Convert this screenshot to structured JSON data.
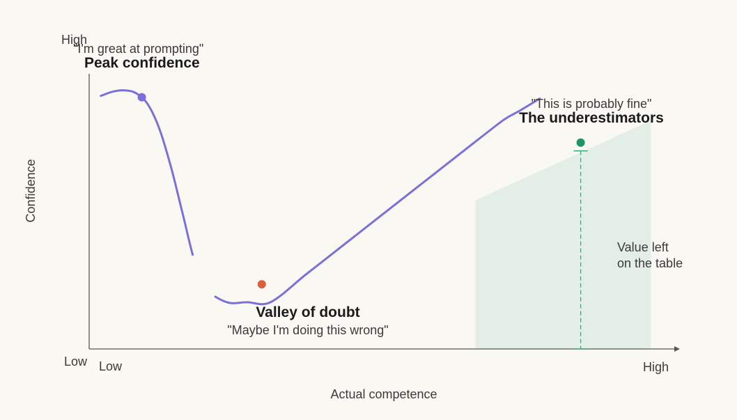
{
  "chart_data": {
    "type": "line",
    "xlabel": "Actual competence",
    "ylabel": "Confidence",
    "x_ticks": {
      "low": "Low",
      "high": "High"
    },
    "y_ticks": {
      "low": "Low",
      "high": "High"
    },
    "xlim": [
      0,
      100
    ],
    "ylim": [
      0,
      100
    ],
    "grid": false,
    "colors": {
      "curve": "#7b6fd8",
      "peak_point": "#7b6fd8",
      "valley_point": "#d9603b",
      "under_point": "#1e9468",
      "shade": "#e3efe6",
      "gap_line": "#3aa57c",
      "axis": "#555555"
    },
    "series": [
      {
        "values_xy": [
          [
            2,
            92
          ],
          [
            4,
            93.5
          ],
          [
            6,
            94
          ],
          [
            8,
            93
          ],
          [
            10,
            89
          ],
          [
            12,
            80
          ],
          [
            14,
            66
          ],
          [
            16,
            49
          ],
          [
            18,
            32
          ],
          [
            20,
            22
          ],
          [
            23.5,
            17
          ],
          [
            27,
            17
          ],
          [
            31,
            17
          ],
          [
            37,
            27
          ],
          [
            43,
            37
          ],
          [
            49,
            47
          ],
          [
            55,
            57
          ],
          [
            61,
            67
          ],
          [
            67,
            77
          ],
          [
            71,
            83.5
          ],
          [
            73.5,
            86.5
          ],
          [
            77,
            91
          ]
        ]
      }
    ],
    "shaded_region": {
      "x": [
        66,
        96
      ],
      "y_start": [
        54,
        83
      ]
    },
    "gap_marker": {
      "x": 84,
      "y_low": 0,
      "y_high": 72
    },
    "annotations": [
      {
        "id": "peak",
        "point": [
          9,
          91.5
        ],
        "title": "Peak confidence",
        "quote": "\"I'm great at prompting\""
      },
      {
        "id": "valley",
        "point": [
          29.5,
          23.5
        ],
        "title": "Valley of doubt",
        "quote": "\"Maybe I'm doing this wrong\""
      },
      {
        "id": "underestimators",
        "point": [
          84,
          75
        ],
        "title": "The underestimators",
        "quote": "\"This is probably fine\""
      }
    ],
    "note": {
      "line1": "Value left",
      "line2": "on the table"
    }
  }
}
